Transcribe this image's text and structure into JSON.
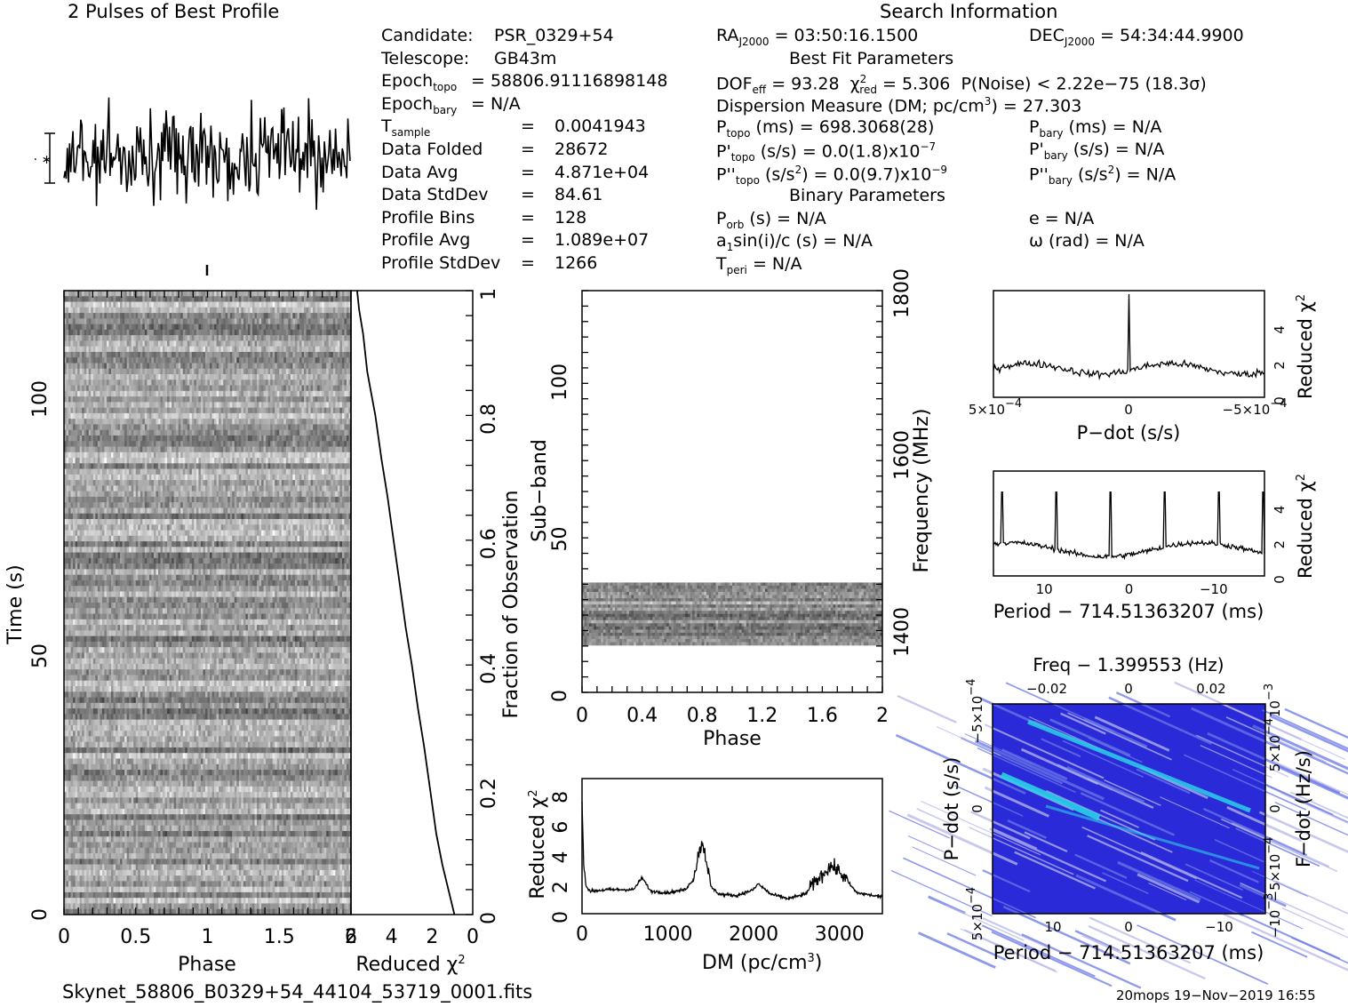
{
  "header": {
    "profile_title": "2 Pulses of Best Profile",
    "search_title": "Search Information",
    "best_fit_title": "Best Fit Parameters",
    "binary_title": "Binary Parameters"
  },
  "info_left": [
    {
      "k": "Candidate:",
      "v": "PSR_0329+54"
    },
    {
      "k": "Telescope:",
      "v": "GB43m"
    },
    {
      "k": "Epoch",
      "sub": "topo",
      "v": "= 58806.91116898148"
    },
    {
      "k": "Epoch",
      "sub": "bary",
      "v": "= N/A"
    },
    {
      "k": "T",
      "sub": "sample",
      "v": "0.0041943"
    },
    {
      "k": "Data Folded",
      "v": "28672"
    },
    {
      "k": "Data Avg",
      "v": "4.871e+04"
    },
    {
      "k": "Data StdDev",
      "v": "84.61"
    },
    {
      "k": "Profile Bins",
      "v": "128"
    },
    {
      "k": "Profile Avg",
      "v": "1.089e+07"
    },
    {
      "k": "Profile StdDev",
      "v": "1266"
    }
  ],
  "info_mid": {
    "ra": "= 03:50:16.1500",
    "dec": "= 54:34:44.9900",
    "dof": "= 93.28",
    "chi2": "= 5.306",
    "pnoise": "P(Noise) < 2.22e−75   (18.3σ)",
    "dm_line": "Dispersion Measure (DM; pc/cm",
    "dm_val": ") = 27.303",
    "ptopo": "(ms) =  698.3068(28)",
    "pdtopo": "(s/s) = 0.0(1.8)x10",
    "pdtopo_exp": "−7",
    "pddtopo": "(s/s",
    "pddtopo_val": ") = 0.0(9.7)x10",
    "pddtopo_exp": "−9",
    "porb": "(s) = N/A",
    "asini": "a",
    "asini_rest": "sin(i)/c (s) = N/A",
    "tperi": "= N/A",
    "pbary": "(ms) = N/A",
    "pdbary": "(s/s) = N/A",
    "pddbary": "(s/s",
    "pddbary_val": ") = N/A",
    "ecc": "e = N/A",
    "omega": "ω (rad) = N/A"
  },
  "footer": {
    "filename": "Skynet_58806_B0329+54_44104_53719_0001.fits",
    "stamp": "20mops 19−Nov−2019 16:55"
  },
  "chart_data": [
    {
      "type": "line",
      "name": "profile",
      "title": "2 Pulses of Best Profile",
      "xlim": [
        0,
        2
      ],
      "note": "noise-dominated folded profile, 2 pulses"
    },
    {
      "type": "heatmap",
      "name": "time-phase",
      "xlabel": "Phase",
      "ylabel": "Time (s)",
      "xticks": [
        "0",
        "0.5",
        "1",
        "1.5",
        "2"
      ],
      "yticks": [
        "0",
        "50",
        "100"
      ],
      "xlim": [
        0,
        2
      ],
      "ylim": [
        0,
        112
      ]
    },
    {
      "type": "line",
      "name": "chi2-vs-time",
      "xlabel": "Reduced χ",
      "xlabel_exp": "2",
      "ylabel": "Fraction of Observation",
      "xticks": [
        "6",
        "4",
        "2",
        "0"
      ],
      "yticks": [
        "0",
        "0.2",
        "0.4",
        "0.6",
        "0.8",
        "1"
      ],
      "xlim": [
        6,
        0
      ],
      "ylim": [
        0,
        1
      ],
      "x": [
        0.9,
        1.2,
        1.5,
        1.8,
        2.1,
        2.4,
        2.7,
        3.0,
        3.3,
        3.6,
        3.9,
        4.2,
        4.5,
        4.8,
        5.2,
        5.4,
        5.6,
        5.7
      ],
      "y": [
        0.0,
        0.04,
        0.08,
        0.13,
        0.2,
        0.27,
        0.33,
        0.4,
        0.46,
        0.53,
        0.6,
        0.67,
        0.73,
        0.8,
        0.87,
        0.93,
        0.97,
        1.0
      ]
    },
    {
      "type": "heatmap",
      "name": "subband-phase",
      "xlabel": "Phase",
      "ylabel": "Sub−band",
      "ylabel2": "Frequency (MHz)",
      "xticks": [
        "0",
        "0.4",
        "0.8",
        "1.2",
        "1.6",
        "2"
      ],
      "yticks": [
        "0",
        "50",
        "100"
      ],
      "y2ticks": [
        "1400",
        "1600",
        "1800"
      ],
      "xlim": [
        0,
        2
      ],
      "ylim": [
        0,
        128
      ],
      "filled_subbands": [
        15,
        35
      ]
    },
    {
      "type": "line",
      "name": "dm-curve",
      "xlabel": "DM (pc/cm",
      "xlabel_exp": "3",
      "xlabel_end": ")",
      "ylabel": "Reduced χ",
      "ylabel_exp": "2",
      "xticks": [
        "0",
        "1000",
        "2000",
        "3000"
      ],
      "yticks": [
        "0",
        "2",
        "4",
        "6",
        "8"
      ],
      "xlim": [
        0,
        3500
      ],
      "ylim": [
        0,
        9
      ],
      "x": [
        0,
        20,
        50,
        100,
        300,
        600,
        700,
        800,
        1000,
        1200,
        1300,
        1350,
        1400,
        1450,
        1500,
        1600,
        1800,
        2000,
        2050,
        2200,
        2400,
        2600,
        2700,
        2800,
        2900,
        3000,
        3200,
        3500
      ],
      "y": [
        7.5,
        3.2,
        1.8,
        1.5,
        1.6,
        1.6,
        2.4,
        1.5,
        1.4,
        1.6,
        2.3,
        3.8,
        4.8,
        3.6,
        1.8,
        1.3,
        1.2,
        1.6,
        2.0,
        1.3,
        1.0,
        1.3,
        2.0,
        2.6,
        3.2,
        2.8,
        1.4,
        1.1
      ]
    },
    {
      "type": "line",
      "name": "pdot-curve",
      "xlabel": "P−dot (s/s)",
      "ylabel": "Reduced χ",
      "ylabel_exp": "2",
      "xticks": [
        "5×10",
        "0",
        "−5×10"
      ],
      "xtick_exp": "−4",
      "yticks": [
        "0",
        "2",
        "4"
      ],
      "xlim": [
        0.0005,
        -0.0005
      ],
      "ylim": [
        0,
        6
      ],
      "x": [
        0.0005,
        0.0004,
        0.0003,
        0.0002,
        0.0001,
        1e-05,
        0.0,
        -1e-05,
        -0.0001,
        -0.0002,
        -0.0003,
        -0.0004,
        -0.0005
      ],
      "y": [
        1.4,
        1.5,
        1.6,
        2.0,
        1.8,
        1.9,
        5.8,
        1.9,
        1.6,
        1.4,
        1.3,
        1.5,
        2.0
      ]
    },
    {
      "type": "line",
      "name": "period-curve",
      "xlabel": "Period − 714.51363207 (ms)",
      "ylabel": "Reduced χ",
      "ylabel_exp": "2",
      "xticks": [
        "10",
        "0",
        "−10"
      ],
      "yticks": [
        "0",
        "2",
        "4"
      ],
      "xlim": [
        16,
        -16
      ],
      "ylim": [
        0,
        6
      ],
      "peaks_at": [
        15,
        8.6,
        2.2,
        -4.2,
        -10.6,
        -15.8
      ],
      "baseline": 1.5
    },
    {
      "type": "heatmap",
      "name": "period-pdot",
      "title": "Freq − 1.399553 (Hz)",
      "xlabel": "Period − 714.51363207 (ms)",
      "ylabel": "P−dot (s/s)",
      "ylabel2": "F−dot (Hz/s)",
      "xticks": [
        "10",
        "0",
        "−10"
      ],
      "x2ticks": [
        "−0.02",
        "0",
        "0.02"
      ],
      "yticks": [
        "5×10",
        "0",
        "−5×10"
      ],
      "ytick_exp": "−4",
      "y2ticks": [
        "−10",
        "−5×10",
        "0",
        "5×10",
        "10"
      ],
      "y2tick_exps": [
        "−3",
        "−4",
        "",
        "−4",
        "−3"
      ],
      "colors": [
        "#2a2ad8",
        "#6a78e6",
        "#b8b8e8",
        "#2ad0e8"
      ]
    }
  ]
}
